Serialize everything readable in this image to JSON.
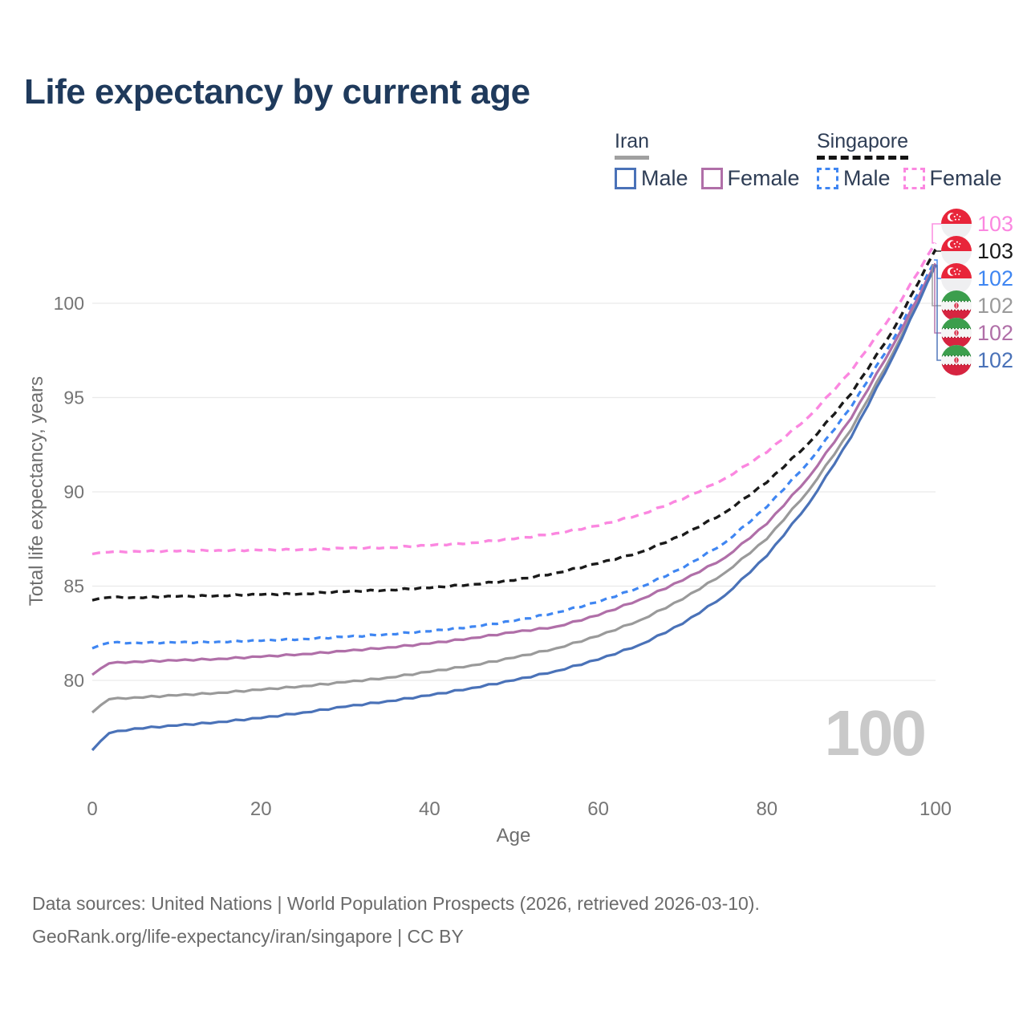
{
  "title": "Life expectancy by current age",
  "legend": {
    "iran": {
      "label": "Iran",
      "male": "Male",
      "female": "Female"
    },
    "singapore": {
      "label": "Singapore",
      "male": "Male",
      "female": "Female"
    }
  },
  "chart_data": {
    "type": "line",
    "xlabel": "Age",
    "ylabel": "Total life expectancy, years",
    "watermark": "100",
    "xlim": [
      0,
      100
    ],
    "ylim": [
      76,
      104
    ],
    "xticks": [
      0,
      20,
      40,
      60,
      80,
      100
    ],
    "yticks": [
      80,
      85,
      90,
      95,
      100
    ],
    "grid": "horizontal",
    "legend_position": "top-right",
    "ages": [
      0,
      2,
      5,
      10,
      15,
      20,
      25,
      30,
      35,
      40,
      45,
      50,
      55,
      60,
      65,
      70,
      75,
      80,
      85,
      90,
      95,
      100
    ],
    "series": [
      {
        "id": "singapore-female",
        "name": "Singapore Female",
        "color": "#fb87e0",
        "dashed": true,
        "dash": "10 7",
        "width": 3.4,
        "values": [
          86.7,
          86.8,
          86.85,
          86.85,
          86.9,
          86.9,
          86.95,
          87.0,
          87.05,
          87.15,
          87.3,
          87.5,
          87.8,
          88.2,
          88.8,
          89.6,
          90.7,
          92.1,
          94.0,
          96.4,
          99.5,
          103.2
        ]
      },
      {
        "id": "singapore-total",
        "name": "Singapore",
        "color": "#1a1a1a",
        "dashed": true,
        "dash": "9 6",
        "width": 3.4,
        "values": [
          84.25,
          84.4,
          84.4,
          84.45,
          84.5,
          84.55,
          84.6,
          84.7,
          84.8,
          84.9,
          85.1,
          85.3,
          85.7,
          86.2,
          86.8,
          87.7,
          88.9,
          90.5,
          92.6,
          95.2,
          98.6,
          102.85
        ]
      },
      {
        "id": "singapore-male",
        "name": "Singapore Male",
        "color": "#3f86f2",
        "dashed": true,
        "dash": "8 6",
        "width": 3.2,
        "values": [
          81.7,
          82.0,
          82.0,
          82.0,
          82.05,
          82.1,
          82.2,
          82.3,
          82.45,
          82.6,
          82.85,
          83.15,
          83.6,
          84.15,
          84.95,
          85.95,
          87.3,
          89.2,
          91.6,
          94.5,
          98.1,
          102.3
        ]
      },
      {
        "id": "iran-total",
        "name": "Iran",
        "color": "#9a9a9a",
        "dashed": false,
        "dash": "",
        "width": 3.2,
        "values": [
          78.3,
          79.0,
          79.1,
          79.2,
          79.35,
          79.5,
          79.7,
          79.9,
          80.15,
          80.45,
          80.8,
          81.2,
          81.7,
          82.35,
          83.2,
          84.3,
          85.7,
          87.5,
          90.1,
          93.3,
          97.4,
          102.05
        ]
      },
      {
        "id": "iran-female",
        "name": "Iran Female",
        "color": "#b06fa8",
        "dashed": false,
        "dash": "",
        "width": 3.2,
        "values": [
          80.3,
          80.9,
          81.0,
          81.05,
          81.15,
          81.25,
          81.4,
          81.55,
          81.75,
          81.95,
          82.25,
          82.55,
          82.85,
          83.45,
          84.3,
          85.3,
          86.5,
          88.3,
          90.8,
          93.9,
          97.8,
          102.1
        ]
      },
      {
        "id": "iran-male",
        "name": "Iran Male",
        "color": "#4a72b8",
        "dashed": false,
        "dash": "",
        "width": 3.2,
        "values": [
          76.3,
          77.2,
          77.45,
          77.6,
          77.8,
          78.0,
          78.3,
          78.6,
          78.9,
          79.2,
          79.6,
          80.0,
          80.5,
          81.1,
          81.9,
          83.0,
          84.5,
          86.6,
          89.4,
          92.9,
          97.2,
          102.0
        ]
      }
    ]
  },
  "end_labels": [
    {
      "series": "singapore-female",
      "flag": "singapore-flag-icon",
      "value": "103",
      "color": "#fb87e0"
    },
    {
      "series": "singapore-total",
      "flag": "singapore-flag-icon",
      "value": "103",
      "color": "#1a1a1a"
    },
    {
      "series": "singapore-male",
      "flag": "singapore-flag-icon",
      "value": "102",
      "color": "#3f86f2"
    },
    {
      "series": "iran-total",
      "flag": "iran-flag-icon",
      "value": "102",
      "color": "#9a9a9a"
    },
    {
      "series": "iran-female",
      "flag": "iran-flag-icon",
      "value": "102",
      "color": "#b06fa8"
    },
    {
      "series": "iran-male",
      "flag": "iran-flag-icon",
      "value": "102",
      "color": "#4a72b8"
    }
  ],
  "footer": {
    "line1": "Data sources: United Nations | World Population Prospects (2026, retrieved 2026-03-10).",
    "line2": "GeoRank.org/life-expectancy/iran/singapore | CC BY"
  }
}
